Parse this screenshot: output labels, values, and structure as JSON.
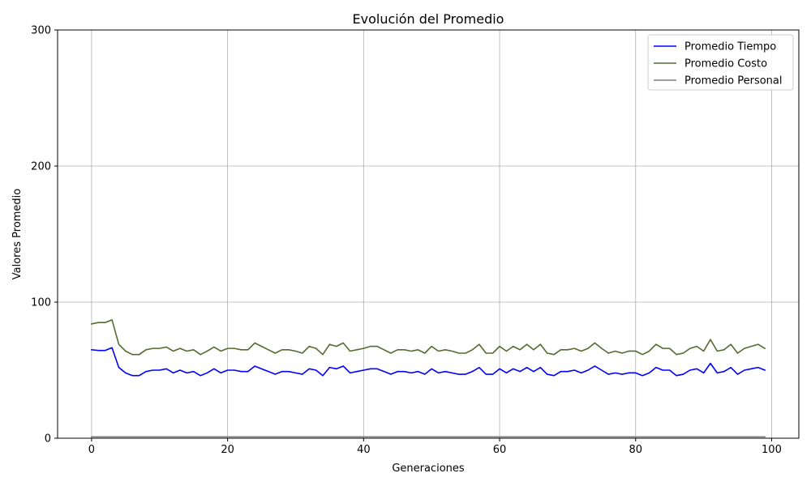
{
  "chart_data": {
    "type": "line",
    "title": "Evolución del Promedio",
    "xlabel": "Generaciones",
    "ylabel": "Valores Promedio",
    "xlim": [
      -5,
      104
    ],
    "ylim": [
      0,
      300
    ],
    "x_ticks": [
      0,
      20,
      40,
      60,
      80,
      100
    ],
    "y_ticks": [
      0,
      100,
      200,
      300
    ],
    "grid": true,
    "legend_position": "top-right",
    "x": [
      0,
      1,
      2,
      3,
      4,
      5,
      6,
      7,
      8,
      9,
      10,
      11,
      12,
      13,
      14,
      15,
      16,
      17,
      18,
      19,
      20,
      21,
      22,
      23,
      24,
      25,
      26,
      27,
      28,
      29,
      30,
      31,
      32,
      33,
      34,
      35,
      36,
      37,
      38,
      39,
      40,
      41,
      42,
      43,
      44,
      45,
      46,
      47,
      48,
      49,
      50,
      51,
      52,
      53,
      54,
      55,
      56,
      57,
      58,
      59,
      60,
      61,
      62,
      63,
      64,
      65,
      66,
      67,
      68,
      69,
      70,
      71,
      72,
      73,
      74,
      75,
      76,
      77,
      78,
      79,
      80,
      81,
      82,
      83,
      84,
      85,
      86,
      87,
      88,
      89,
      90,
      91,
      92,
      93,
      94,
      95,
      96,
      97,
      98,
      99
    ],
    "series": [
      {
        "name": "Promedio Tiempo",
        "color": "#0000ff",
        "values": [
          65,
          64.5,
          64.5,
          66.5,
          52,
          48,
          46,
          46,
          49,
          50,
          50,
          51,
          48,
          50,
          48,
          49,
          46,
          48,
          51,
          48,
          50,
          50,
          49,
          49,
          53,
          51,
          49,
          47,
          49,
          49,
          48,
          47,
          51,
          50,
          46,
          52,
          51,
          53,
          48,
          49,
          50,
          51,
          51,
          49,
          47,
          49,
          49,
          48,
          49,
          47,
          51,
          48,
          49,
          48,
          47,
          47,
          49,
          52,
          47,
          47,
          51,
          48,
          51,
          49,
          52,
          49,
          52,
          47,
          46,
          49,
          49,
          50,
          48,
          50,
          53,
          50,
          47,
          48,
          47,
          48,
          48,
          46,
          48,
          52,
          50,
          50,
          46,
          47,
          50,
          51,
          48,
          55,
          48,
          49,
          52,
          47,
          50,
          51,
          52,
          50
        ]
      },
      {
        "name": "Promedio Costo",
        "color": "#556b2f",
        "values": [
          84,
          85,
          85,
          87,
          69,
          64,
          61.5,
          61.5,
          65,
          66,
          66,
          67,
          64,
          66,
          64,
          65,
          61.5,
          64,
          67,
          64,
          66,
          66,
          65,
          65,
          70,
          67.5,
          65,
          62.5,
          65,
          65,
          64,
          62.5,
          67.5,
          66,
          61.5,
          69,
          67.5,
          70,
          64,
          65,
          66,
          67.5,
          67.5,
          65,
          62.5,
          65,
          65,
          64,
          65,
          62.5,
          67.5,
          64,
          65,
          64,
          62.5,
          62.5,
          65,
          69,
          62.5,
          62.5,
          67.5,
          64,
          67.5,
          65,
          69,
          65,
          69,
          62.5,
          61.5,
          65,
          65,
          66,
          64,
          66,
          70,
          66,
          62.5,
          64,
          62.5,
          64,
          64,
          61.5,
          64,
          69,
          66,
          66,
          61.5,
          62.5,
          66,
          67.5,
          64,
          72.5,
          64,
          65,
          69,
          62.5,
          66,
          67.5,
          69,
          66
        ]
      },
      {
        "name": "Promedio Personal",
        "color": "#808080",
        "values": [
          1,
          1,
          1,
          1,
          1,
          1,
          1,
          1,
          1,
          1,
          1,
          1,
          1,
          1,
          1,
          1,
          1,
          1,
          1,
          1,
          1,
          1,
          1,
          1,
          1,
          1,
          1,
          1,
          1,
          1,
          1,
          1,
          1,
          1,
          1,
          1,
          1,
          1,
          1,
          1,
          1,
          1,
          1,
          1,
          1,
          1,
          1,
          1,
          1,
          1,
          1,
          1,
          1,
          1,
          1,
          1,
          1,
          1,
          1,
          1,
          1,
          1,
          1,
          1,
          1,
          1,
          1,
          1,
          1,
          1,
          1,
          1,
          1,
          1,
          1,
          1,
          1,
          1,
          1,
          1,
          1,
          1,
          1,
          1,
          1,
          1,
          1,
          1,
          1,
          1,
          1,
          1,
          1,
          1,
          1,
          1,
          1,
          1,
          1,
          1
        ]
      }
    ]
  }
}
